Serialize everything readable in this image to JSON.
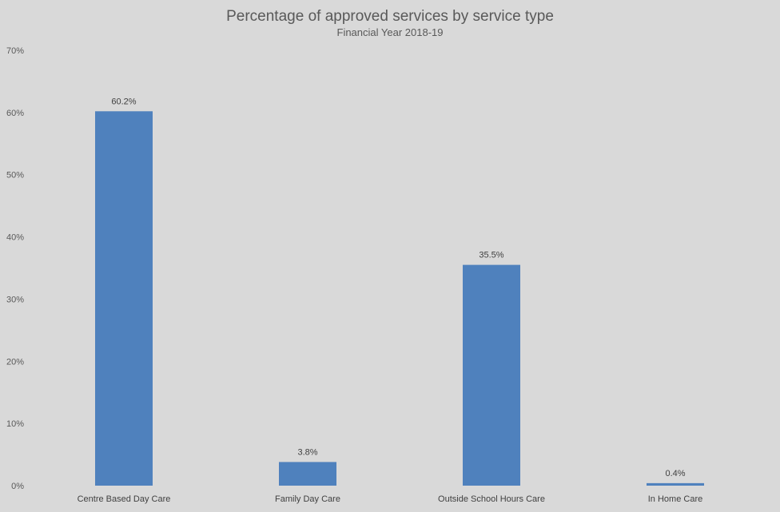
{
  "chart_data": {
    "type": "bar",
    "title": "Percentage of approved services by service type",
    "subtitle": "Financial Year 2018-19",
    "xlabel": "",
    "ylabel": "",
    "categories": [
      "Centre Based Day Care",
      "Family Day Care",
      "Outside School Hours Care",
      "In Home Care"
    ],
    "values": [
      60.2,
      3.8,
      35.5,
      0.4
    ],
    "data_labels": [
      "60.2%",
      "3.8%",
      "35.5%",
      "0.4%"
    ],
    "ylim": [
      0,
      70
    ],
    "yticks": [
      0,
      10,
      20,
      30,
      40,
      50,
      60,
      70
    ],
    "ytick_labels": [
      "0%",
      "10%",
      "20%",
      "30%",
      "40%",
      "50%",
      "60%",
      "70%"
    ],
    "grid": false,
    "legend": "none",
    "bar_color": "#4f81bd",
    "background_color": "#d9d9d9"
  }
}
